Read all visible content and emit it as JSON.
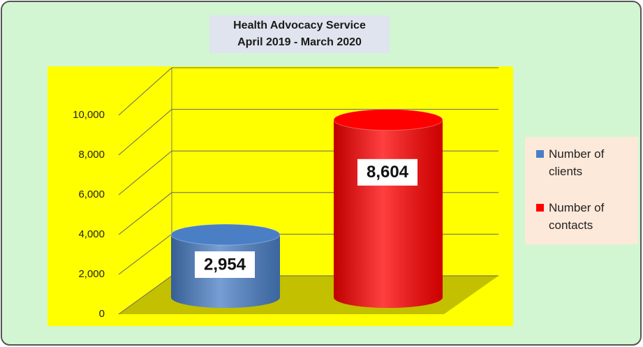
{
  "chart_data": {
    "type": "bar3d",
    "title": "Health Advocacy Service",
    "subtitle": "April 2019 - March 2020",
    "categories": [
      null
    ],
    "series": [
      {
        "name": "Number of clients",
        "color": "#4a7fc6",
        "values": [
          2954
        ],
        "value_labels": [
          "2,954"
        ]
      },
      {
        "name": "Number of contacts",
        "color": "#ff0000",
        "values": [
          8604
        ],
        "value_labels": [
          "8,604"
        ]
      }
    ],
    "ylim": [
      0,
      10000
    ],
    "yticks": [
      0,
      {
        "value": 2000,
        "label": "2,000"
      },
      {
        "value": 4000,
        "label": "4,000"
      },
      {
        "value": 6000,
        "label": "6,000"
      },
      {
        "value": 8000,
        "label": "8,000"
      },
      {
        "value": 10000,
        "label": "10,000"
      }
    ],
    "grid": true,
    "legend": "right"
  }
}
